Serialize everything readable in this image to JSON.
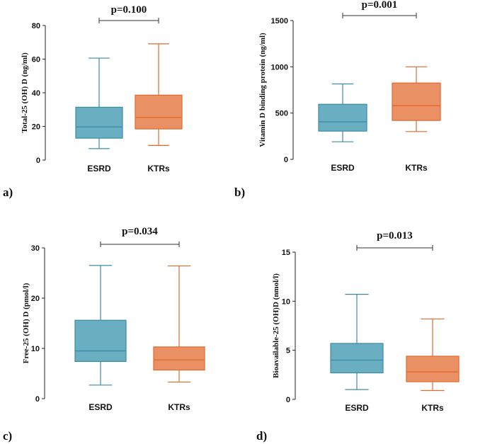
{
  "chart_data": [
    {
      "type": "box",
      "panel_label": "a)",
      "ylabel": "Total-25 (OH) D (ng/ml)",
      "categories": [
        "ESRD",
        "KTRs"
      ],
      "ylim": [
        0,
        80
      ],
      "yticks": [
        0,
        20,
        40,
        60,
        80
      ],
      "ytick_labels": [
        "0",
        "20",
        "40",
        "60",
        "80"
      ],
      "p_value": "p=0.100",
      "boxes": [
        {
          "name": "ESRD",
          "min": 6.8,
          "q1": 13,
          "median": 19.7,
          "q3": 31.4,
          "max": 60.6,
          "color": "#6aaec2",
          "edge": "#3c8ba5"
        },
        {
          "name": "KTRs",
          "min": 8.7,
          "q1": 18.5,
          "median": 25.4,
          "q3": 38.6,
          "max": 69.1,
          "color": "#ea9065",
          "edge": "#e06a2f"
        }
      ]
    },
    {
      "type": "box",
      "panel_label": "b)",
      "ylabel": "Vitamin D binding protein  (ng/ml)",
      "categories": [
        "ESRD",
        "KTRs"
      ],
      "ylim": [
        0,
        1500
      ],
      "yticks": [
        0,
        500,
        1000,
        1500
      ],
      "ytick_labels": [
        "0",
        "500",
        "1000",
        "1500"
      ],
      "p_value": "p=0.001",
      "boxes": [
        {
          "name": "ESRD",
          "min": 190,
          "q1": 305,
          "median": 405,
          "q3": 595,
          "max": 815,
          "color": "#6aaec2",
          "edge": "#3c8ba5"
        },
        {
          "name": "KTRs",
          "min": 300,
          "q1": 420,
          "median": 580,
          "q3": 825,
          "max": 1000,
          "color": "#ea9065",
          "edge": "#e06a2f"
        }
      ]
    },
    {
      "type": "box",
      "panel_label": "c)",
      "ylabel": "Free-25 (OH) D (pmol/l)",
      "categories": [
        "ESRD",
        "KTRs"
      ],
      "ylim": [
        0,
        30
      ],
      "yticks": [
        0,
        10,
        20,
        30
      ],
      "ytick_labels": [
        "0",
        "10",
        "20",
        "30"
      ],
      "p_value": "p=0.034",
      "boxes": [
        {
          "name": "ESRD",
          "min": 2.7,
          "q1": 7.4,
          "median": 9.5,
          "q3": 15.6,
          "max": 26.5,
          "color": "#6aaec2",
          "edge": "#3c8ba5"
        },
        {
          "name": "KTRs",
          "min": 3.3,
          "q1": 5.7,
          "median": 7.7,
          "q3": 10.3,
          "max": 26.4,
          "color": "#ea9065",
          "edge": "#e06a2f"
        }
      ]
    },
    {
      "type": "box",
      "panel_label": "d)",
      "ylabel": "Bioavailable-25 (OH)D (nmol/l)",
      "categories": [
        "ESRD",
        "KTRs"
      ],
      "ylim": [
        0,
        15
      ],
      "yticks": [
        0,
        5,
        10,
        15
      ],
      "ytick_labels": [
        "0",
        "5",
        "10",
        "15"
      ],
      "p_value": "p=0.013",
      "boxes": [
        {
          "name": "ESRD",
          "min": 1,
          "q1": 2.7,
          "median": 4,
          "q3": 5.7,
          "max": 10.7,
          "color": "#6aaec2",
          "edge": "#3c8ba5"
        },
        {
          "name": "KTRs",
          "min": 0.9,
          "q1": 1.8,
          "median": 2.8,
          "q3": 4.4,
          "max": 8.2,
          "color": "#ea9065",
          "edge": "#e06a2f"
        }
      ]
    }
  ]
}
